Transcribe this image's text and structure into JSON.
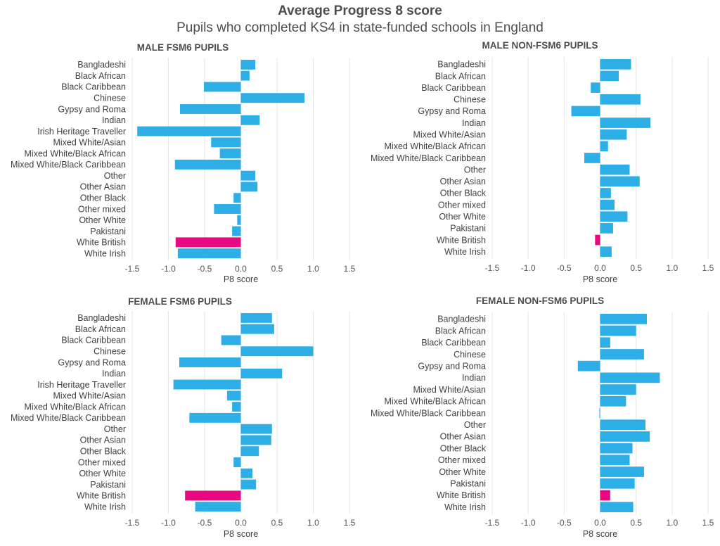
{
  "title": "Average Progress 8 score",
  "subtitle": "Pupils who completed KS4 in state-funded schools in England",
  "colors": {
    "bar": "#2eaee6",
    "highlight": "#e8087f",
    "grid": "#e6e6e6"
  },
  "chart_data": [
    {
      "type": "bar",
      "orientation": "horizontal",
      "title": "MALE FSM6 PUPILS",
      "xlabel": "P8 score",
      "xlim": [
        -1.5,
        1.5
      ],
      "xticks": [
        "-1.5",
        "-1.0",
        "-0.5",
        "0.0",
        "0.5",
        "1.0",
        "1.5"
      ],
      "highlight": "White British",
      "categories": [
        "Bangladeshi",
        "Black African",
        "Black Caribbean",
        "Chinese",
        "Gypsy and Roma",
        "Indian",
        "Irish Heritage Traveller",
        "Mixed White/Asian",
        "Mixed White/Black African",
        "Mixed White/Black Caribbean",
        "Other",
        "Other Asian",
        "Other Black",
        "Other mixed",
        "Other White",
        "Pakistani",
        "White British",
        "White Irish"
      ],
      "values": [
        0.2,
        0.12,
        -0.51,
        0.88,
        -0.84,
        0.26,
        -1.43,
        -0.41,
        -0.29,
        -0.91,
        0.2,
        0.23,
        -0.1,
        -0.37,
        -0.05,
        -0.12,
        -0.9,
        -0.87
      ]
    },
    {
      "type": "bar",
      "orientation": "horizontal",
      "title": "MALE NON-FSM6 PUPILS",
      "xlabel": "P8 score",
      "xlim": [
        -1.5,
        1.5
      ],
      "xticks": [
        "-1.5",
        "-1.0",
        "-0.5",
        "0.0",
        "0.5",
        "1.0",
        "1.5"
      ],
      "highlight": "White British",
      "categories": [
        "Bangladeshi",
        "Black African",
        "Black Caribbean",
        "Chinese",
        "Gypsy and Roma",
        "Indian",
        "Mixed White/Asian",
        "Mixed White/Black African",
        "Mixed White/Black Caribbean",
        "Other",
        "Other Asian",
        "Other Black",
        "Other mixed",
        "Other White",
        "Pakistani",
        "White British",
        "White Irish"
      ],
      "values": [
        0.43,
        0.26,
        -0.13,
        0.56,
        -0.4,
        0.7,
        0.37,
        0.11,
        -0.22,
        0.41,
        0.55,
        0.15,
        0.2,
        0.38,
        0.18,
        -0.07,
        0.16
      ]
    },
    {
      "type": "bar",
      "orientation": "horizontal",
      "title": "FEMALE FSM6 PUPILS",
      "xlabel": "P8 score",
      "xlim": [
        -1.5,
        1.5
      ],
      "xticks": [
        "-1.5",
        "-1.0",
        "-0.5",
        "0.0",
        "0.5",
        "1.0",
        "1.5"
      ],
      "highlight": "White British",
      "categories": [
        "Bangladeshi",
        "Black African",
        "Black Caribbean",
        "Chinese",
        "Gypsy and Roma",
        "Indian",
        "Irish Heritage Traveller",
        "Mixed White/Asian",
        "Mixed White/Black African",
        "Mixed White/Black Caribbean",
        "Other",
        "Other Asian",
        "Other Black",
        "Other mixed",
        "Other White",
        "Pakistani",
        "White British",
        "White Irish"
      ],
      "values": [
        0.43,
        0.46,
        -0.27,
        1.0,
        -0.85,
        0.57,
        -0.93,
        -0.19,
        -0.12,
        -0.71,
        0.43,
        0.42,
        0.25,
        -0.1,
        0.16,
        0.21,
        -0.77,
        -0.63
      ]
    },
    {
      "type": "bar",
      "orientation": "horizontal",
      "title": "FEMALE NON-FSM6 PUPILS",
      "xlabel": "P8 score",
      "xlim": [
        -1.5,
        1.5
      ],
      "xticks": [
        "-1.5",
        "-1.0",
        "-0.5",
        "0.0",
        "0.5",
        "1.0",
        "1.5"
      ],
      "highlight": "White British",
      "categories": [
        "Bangladeshi",
        "Black African",
        "Black Caribbean",
        "Chinese",
        "Gypsy and Roma",
        "Indian",
        "Mixed White/Asian",
        "Mixed White/Black African",
        "Mixed White/Black Caribbean",
        "Other",
        "Other Asian",
        "Other Black",
        "Other mixed",
        "Other White",
        "Pakistani",
        "White British",
        "White Irish"
      ],
      "values": [
        0.65,
        0.5,
        0.14,
        0.61,
        -0.31,
        0.83,
        0.5,
        0.36,
        -0.01,
        0.63,
        0.69,
        0.45,
        0.41,
        0.61,
        0.48,
        0.14,
        0.46
      ]
    }
  ]
}
